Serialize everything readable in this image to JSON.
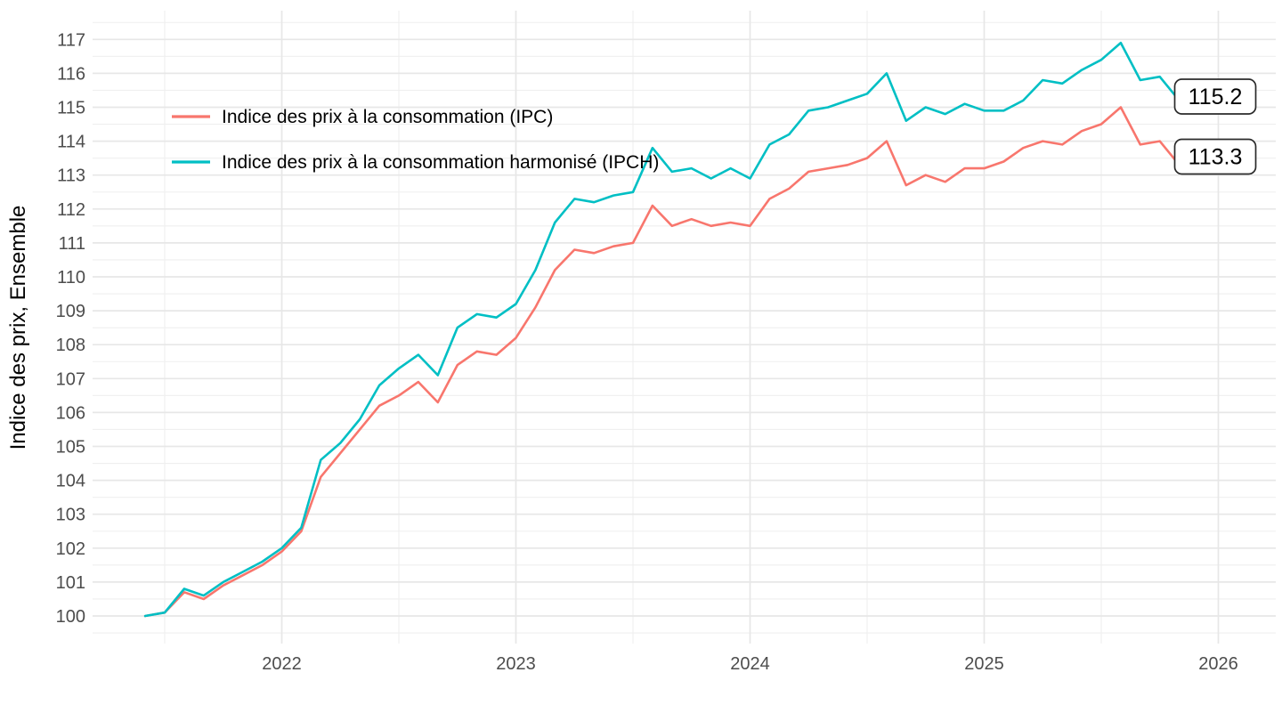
{
  "chart_data": {
    "type": "line",
    "title": "",
    "xlabel": "",
    "ylabel": "Indice des prix, Ensemble",
    "x_unit": "month",
    "months": [
      "2021-06",
      "2021-07",
      "2021-08",
      "2021-09",
      "2021-10",
      "2021-11",
      "2021-12",
      "2022-01",
      "2022-02",
      "2022-03",
      "2022-04",
      "2022-05",
      "2022-06",
      "2022-07",
      "2022-08",
      "2022-09",
      "2022-10",
      "2022-11",
      "2022-12",
      "2023-01",
      "2023-02",
      "2023-03",
      "2023-04",
      "2023-05",
      "2023-06",
      "2023-07",
      "2023-08",
      "2023-09",
      "2023-10",
      "2023-11",
      "2023-12",
      "2024-01",
      "2024-02",
      "2024-03",
      "2024-04",
      "2024-05",
      "2024-06",
      "2024-07",
      "2024-08",
      "2024-09",
      "2024-10",
      "2024-11",
      "2024-12",
      "2025-01",
      "2025-02",
      "2025-03",
      "2025-04",
      "2025-05",
      "2025-06",
      "2025-07",
      "2025-08",
      "2025-09",
      "2025-10",
      "2025-11"
    ],
    "series": [
      {
        "key": "ipc",
        "name": "Indice des prix à la consommation (IPC)",
        "color": "#F8766D",
        "end_label": "113.3",
        "values": [
          100.0,
          100.1,
          100.7,
          100.5,
          100.9,
          101.2,
          101.5,
          101.9,
          102.5,
          104.1,
          104.8,
          105.5,
          106.2,
          106.5,
          106.9,
          106.3,
          107.4,
          107.8,
          107.7,
          108.2,
          109.1,
          110.2,
          110.8,
          110.7,
          110.9,
          111.0,
          112.1,
          111.5,
          111.7,
          111.5,
          111.6,
          111.5,
          112.3,
          112.6,
          113.1,
          113.2,
          113.3,
          113.5,
          114.0,
          112.7,
          113.0,
          112.8,
          113.2,
          113.2,
          113.4,
          113.8,
          114.0,
          113.9,
          114.3,
          114.5,
          115.0,
          113.9,
          114.0,
          113.3
        ]
      },
      {
        "key": "ipch",
        "name": "Indice des prix à la consommation harmonisé (IPCH)",
        "color": "#00BFC4",
        "end_label": "115.2",
        "values": [
          100.0,
          100.1,
          100.8,
          100.6,
          101.0,
          101.3,
          101.6,
          102.0,
          102.6,
          104.6,
          105.1,
          105.8,
          106.8,
          107.3,
          107.7,
          107.1,
          108.5,
          108.9,
          108.8,
          109.2,
          110.2,
          111.6,
          112.3,
          112.2,
          112.4,
          112.5,
          113.8,
          113.1,
          113.2,
          112.9,
          113.2,
          112.9,
          113.9,
          114.2,
          114.9,
          115.0,
          115.2,
          115.4,
          116.0,
          114.6,
          115.0,
          114.8,
          115.1,
          114.9,
          114.9,
          115.2,
          115.8,
          115.7,
          116.1,
          116.4,
          116.9,
          115.8,
          115.9,
          115.2
        ]
      }
    ],
    "y_ticks": [
      100,
      101,
      102,
      103,
      104,
      105,
      106,
      107,
      108,
      109,
      110,
      111,
      112,
      113,
      114,
      115,
      116,
      117
    ],
    "x_ticks": [
      {
        "label": "2022",
        "month_index": 7
      },
      {
        "label": "2023",
        "month_index": 19
      },
      {
        "label": "2024",
        "month_index": 31
      },
      {
        "label": "2025",
        "month_index": 43
      },
      {
        "label": "2026",
        "month_index": 55
      }
    ],
    "ylim": [
      99.5,
      117.5
    ],
    "grid": {
      "major_color": "#E7E7E7",
      "minor_color": "#EFEFEF",
      "minor_y_step": 0.5,
      "minor_x": "mid-year"
    },
    "legend_position": "top-left-inside",
    "axis_text_color": "#4D4D4D"
  }
}
